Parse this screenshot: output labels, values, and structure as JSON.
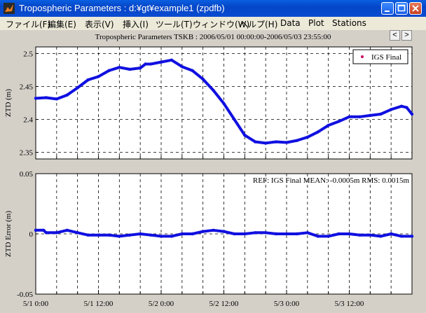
{
  "window": {
    "title": "Tropospheric Parameters : d:¥gt¥example1 (zpdfb)"
  },
  "menu": [
    "ファイル(F)",
    "編集(E)",
    "表示(V)",
    "挿入(I)",
    "ツール(T)",
    "ウィンドウ(W)",
    "ヘルプ(H)",
    "Data",
    "Plot",
    "Stations"
  ],
  "nav": {
    "prev": "<",
    "next": ">"
  },
  "chart_data": [
    {
      "type": "scatter",
      "title": "Tropospheric Parameters TSKB : 2006/05/01 00:00:00-2006/05/03 23:55:00",
      "ylabel": "ZTD (m)",
      "xlabel": "",
      "ylim": [
        2.34,
        2.51
      ],
      "yticks": [
        "2.35",
        "2.4",
        "2.45",
        "2.5"
      ],
      "xlim": [
        0,
        72
      ],
      "grid": true,
      "legend": {
        "placement": "top-right",
        "entries": [
          "IGS Final"
        ]
      },
      "series": [
        {
          "name": "IGS Final",
          "x": [
            0,
            2,
            4,
            6,
            8,
            10,
            12,
            14,
            16,
            18,
            20,
            21,
            22,
            24,
            26,
            28,
            30,
            32,
            34,
            36,
            38,
            40,
            42,
            44,
            46,
            48,
            50,
            52,
            54,
            56,
            58,
            60,
            62,
            64,
            66,
            68,
            70,
            71,
            72
          ],
          "y": [
            2.432,
            2.433,
            2.431,
            2.437,
            2.448,
            2.46,
            2.465,
            2.474,
            2.479,
            2.476,
            2.478,
            2.484,
            2.484,
            2.487,
            2.49,
            2.48,
            2.474,
            2.461,
            2.444,
            2.424,
            2.4,
            2.376,
            2.366,
            2.364,
            2.366,
            2.365,
            2.368,
            2.373,
            2.381,
            2.391,
            2.397,
            2.404,
            2.404,
            2.406,
            2.408,
            2.415,
            2.42,
            2.418,
            2.408
          ]
        }
      ]
    },
    {
      "type": "scatter",
      "title": "",
      "ylabel": "ZTD Error (m)",
      "xlabel": "",
      "ylim": [
        -0.05,
        0.05
      ],
      "yticks": [
        "-0.05",
        "0",
        "0.05"
      ],
      "xlim": [
        0,
        72
      ],
      "xticks": [
        "5/1  0:00",
        "5/1 12:00",
        "5/2  0:00",
        "5/2 12:00",
        "5/3  0:00",
        "5/3 12:00"
      ],
      "xtick_values": [
        0,
        12,
        24,
        36,
        48,
        60
      ],
      "grid": true,
      "annotation": "REF: IGS Final  MEAN: -0.0005m RMS: 0.0015m",
      "series": [
        {
          "name": "IGS Final",
          "x": [
            0,
            1.5,
            2,
            4,
            6,
            8,
            10,
            12,
            14,
            16,
            18,
            20,
            22,
            24,
            26,
            28,
            30,
            32,
            34,
            36,
            38,
            40,
            42,
            44,
            46,
            48,
            50,
            52,
            54,
            56,
            58,
            60,
            62,
            64,
            66,
            68,
            70,
            72
          ],
          "y": [
            0.003,
            0.003,
            0.001,
            0.001,
            0.003,
            0.001,
            -0.001,
            -0.001,
            -0.001,
            -0.002,
            -0.001,
            0.0,
            -0.001,
            -0.002,
            -0.002,
            0.0,
            0.0,
            0.002,
            0.003,
            0.002,
            0.0,
            0.0,
            0.001,
            0.001,
            0.0,
            0.0,
            0.0,
            0.001,
            -0.002,
            -0.002,
            0.0,
            0.0,
            -0.001,
            -0.001,
            -0.002,
            0.0,
            -0.002,
            -0.002
          ]
        }
      ]
    }
  ],
  "colors": {
    "series": "#1010e0",
    "legend_marker": "#cc0066",
    "titlebar": "#0a50d8"
  }
}
